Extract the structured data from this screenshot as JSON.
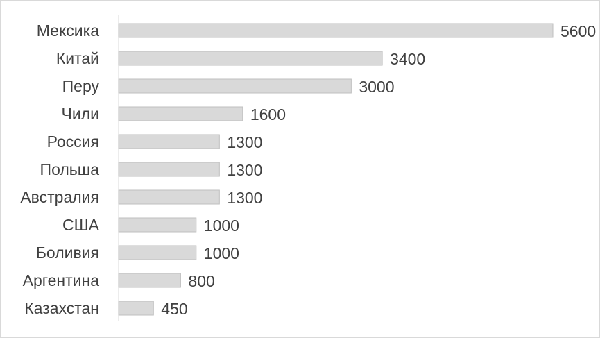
{
  "chart_data": {
    "type": "bar",
    "orientation": "horizontal",
    "title": "",
    "xlabel": "",
    "ylabel": "",
    "xlim": [
      0,
      5600
    ],
    "grid": false,
    "legend": "none",
    "bar_color": "#d9d9d9",
    "categories": [
      "Мексика",
      "Китай",
      "Перу",
      "Чили",
      "Россия",
      "Польша",
      "Австралия",
      "США",
      "Боливия",
      "Аргентина",
      "Казахстан"
    ],
    "values": [
      5600,
      3400,
      3000,
      1600,
      1300,
      1300,
      1300,
      1000,
      1000,
      800,
      450
    ]
  }
}
